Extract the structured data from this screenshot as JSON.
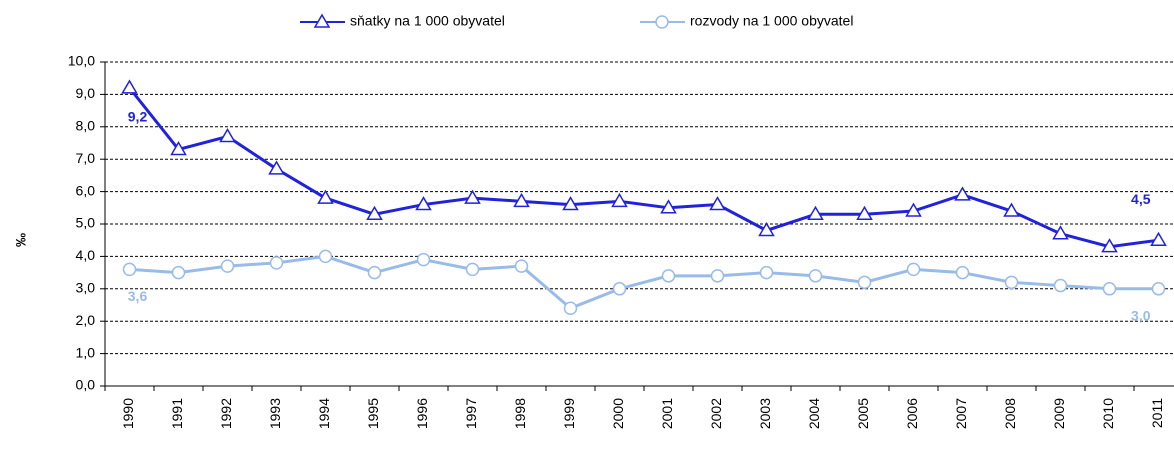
{
  "chart_data": {
    "type": "line",
    "y_axis_label": "‰",
    "categories": [
      "1990",
      "1991",
      "1992",
      "1993",
      "1994",
      "1995",
      "1996",
      "1997",
      "1998",
      "1999",
      "2000",
      "2001",
      "2002",
      "2003",
      "2004",
      "2005",
      "2006",
      "2007",
      "2008",
      "2009",
      "2010",
      "2011"
    ],
    "series": [
      {
        "name": "sňatky na 1 000 obyvatel",
        "color": "#2222dd",
        "marker": "triangle",
        "values": [
          9.2,
          7.3,
          7.7,
          6.7,
          5.8,
          5.3,
          5.6,
          5.8,
          5.7,
          5.6,
          5.7,
          5.5,
          5.6,
          4.8,
          5.3,
          5.3,
          5.4,
          5.9,
          5.4,
          4.7,
          4.3,
          4.5
        ],
        "value_labels": [
          "9,2",
          null,
          null,
          null,
          null,
          null,
          null,
          null,
          null,
          null,
          null,
          null,
          null,
          null,
          null,
          null,
          null,
          null,
          null,
          null,
          null,
          "4,5"
        ]
      },
      {
        "name": "rozvody na 1 000 obyvatel",
        "color": "#99bbe8",
        "marker": "circle",
        "values": [
          3.6,
          3.5,
          3.7,
          3.8,
          4.0,
          3.5,
          3.9,
          3.6,
          3.7,
          2.4,
          3.0,
          3.4,
          3.4,
          3.5,
          3.4,
          3.2,
          3.6,
          3.5,
          3.2,
          3.1,
          3.0,
          3.0
        ],
        "value_labels": [
          "3,6",
          null,
          null,
          null,
          null,
          null,
          null,
          null,
          null,
          null,
          null,
          null,
          null,
          null,
          null,
          null,
          null,
          null,
          null,
          null,
          null,
          "3,0"
        ]
      }
    ],
    "ylim": [
      0,
      10
    ],
    "yticks": [
      {
        "value": 0,
        "label": "0,0"
      },
      {
        "value": 1,
        "label": "1,0"
      },
      {
        "value": 2,
        "label": "2,0"
      },
      {
        "value": 3,
        "label": "3,0"
      },
      {
        "value": 4,
        "label": "4,0"
      },
      {
        "value": 5,
        "label": "5,0"
      },
      {
        "value": 6,
        "label": "6,0"
      },
      {
        "value": 7,
        "label": "7,0"
      },
      {
        "value": 8,
        "label": "8,0"
      },
      {
        "value": 9,
        "label": "9,0"
      },
      {
        "value": 10,
        "label": "10,0"
      }
    ],
    "grid": true,
    "legend": "top"
  }
}
